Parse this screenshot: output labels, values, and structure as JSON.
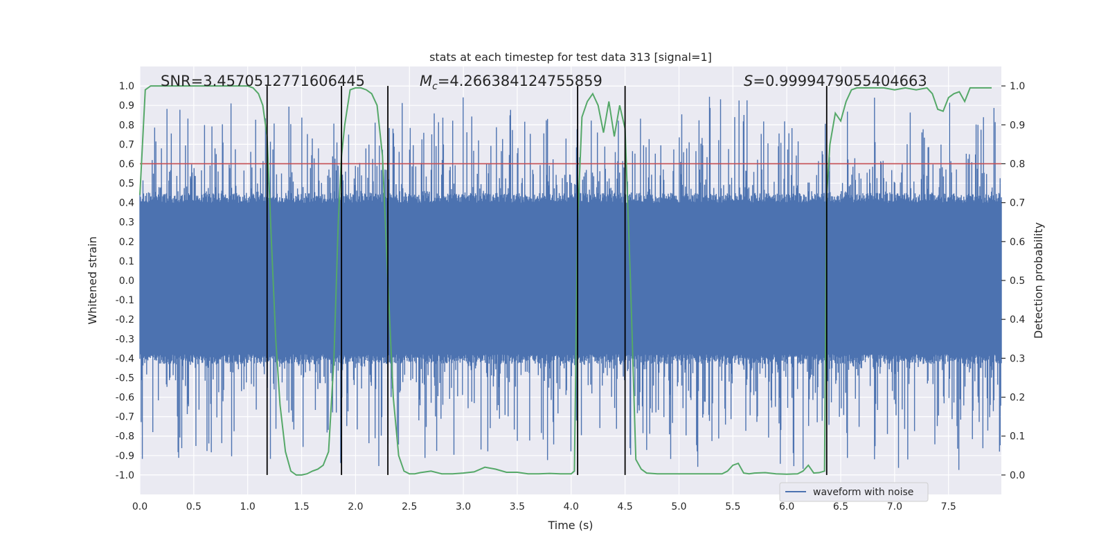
{
  "chart_data": {
    "type": "line",
    "title": "stats at each timestep for test data 313 [signal=1]",
    "xlabel": "Time (s)",
    "ylabel": "Whitened strain",
    "y2label": "Detection probability",
    "xlim": [
      0.0,
      7.99
    ],
    "ylim": [
      -1.1,
      1.1
    ],
    "y2lim": [
      -0.05,
      1.05
    ],
    "xticks": [
      "0.0",
      "0.5",
      "1.0",
      "1.5",
      "2.0",
      "2.5",
      "3.0",
      "3.5",
      "4.0",
      "4.5",
      "5.0",
      "5.5",
      "6.0",
      "6.5",
      "7.0",
      "7.5"
    ],
    "yticks": [
      "1.0",
      "0.9",
      "0.8",
      "0.7",
      "0.6",
      "0.5",
      "0.4",
      "0.3",
      "0.2",
      "0.1",
      "0.0",
      "-0.1",
      "-0.2",
      "-0.3",
      "-0.4",
      "-0.5",
      "-0.6",
      "-0.7",
      "-0.8",
      "-0.9",
      "-1.0"
    ],
    "y2ticks": [
      "1.0",
      "0.9",
      "0.8",
      "0.7",
      "0.6",
      "0.5",
      "0.4",
      "0.3",
      "0.2",
      "0.1",
      "0.0"
    ],
    "grid": true,
    "legend_position": "bottom-right",
    "annotations": {
      "snr_prefix": "SNR=",
      "snr_value": "3.4570512771606445",
      "mc_symbol": "M",
      "mc_sub": "c",
      "mc_value": "=4.266384124755859",
      "s_symbol": "S",
      "s_value": "=0.9999479055404663"
    },
    "threshold": {
      "y2": 0.8,
      "color": "#c44e52"
    },
    "vertical_lines_x": [
      1.18,
      1.87,
      2.3,
      4.06,
      4.5,
      6.37
    ],
    "series": [
      {
        "name": "waveform with noise",
        "color": "#4c72b0",
        "band_typical": [
          -0.38,
          0.4
        ],
        "spike_range": [
          -1.0,
          1.0
        ]
      },
      {
        "color": "#55a868",
        "axis": "y2",
        "x": [
          0.0,
          0.05,
          0.1,
          0.2,
          0.3,
          0.5,
          0.7,
          0.9,
          1.0,
          1.05,
          1.1,
          1.14,
          1.18,
          1.22,
          1.26,
          1.3,
          1.35,
          1.4,
          1.45,
          1.5,
          1.55,
          1.6,
          1.65,
          1.7,
          1.75,
          1.8,
          1.84,
          1.87,
          1.9,
          1.95,
          2.0,
          2.05,
          2.1,
          2.15,
          2.2,
          2.25,
          2.3,
          2.35,
          2.4,
          2.45,
          2.5,
          2.55,
          2.6,
          2.7,
          2.8,
          2.9,
          3.0,
          3.1,
          3.2,
          3.3,
          3.4,
          3.5,
          3.6,
          3.7,
          3.8,
          3.9,
          4.0,
          4.03,
          4.06,
          4.1,
          4.15,
          4.2,
          4.25,
          4.3,
          4.35,
          4.4,
          4.45,
          4.5,
          4.55,
          4.6,
          4.65,
          4.7,
          4.8,
          4.9,
          5.0,
          5.2,
          5.4,
          5.45,
          5.5,
          5.55,
          5.6,
          5.65,
          5.7,
          5.8,
          5.9,
          6.0,
          6.1,
          6.15,
          6.2,
          6.25,
          6.3,
          6.35,
          6.37,
          6.4,
          6.45,
          6.5,
          6.55,
          6.6,
          6.65,
          6.7,
          6.8,
          6.9,
          7.0,
          7.1,
          7.2,
          7.3,
          7.35,
          7.4,
          7.45,
          7.5,
          7.55,
          7.6,
          7.65,
          7.7,
          7.75,
          7.8,
          7.9
        ],
        "y": [
          0.72,
          0.99,
          1.0,
          1.0,
          1.0,
          1.0,
          1.0,
          1.0,
          1.0,
          0.995,
          0.98,
          0.95,
          0.87,
          0.6,
          0.35,
          0.18,
          0.06,
          0.01,
          0.0,
          0.0,
          0.003,
          0.01,
          0.015,
          0.025,
          0.06,
          0.3,
          0.65,
          0.82,
          0.9,
          0.99,
          0.995,
          0.995,
          0.99,
          0.98,
          0.95,
          0.82,
          0.5,
          0.2,
          0.05,
          0.01,
          0.003,
          0.003,
          0.006,
          0.01,
          0.003,
          0.003,
          0.005,
          0.008,
          0.02,
          0.015,
          0.007,
          0.007,
          0.003,
          0.003,
          0.004,
          0.003,
          0.003,
          0.01,
          0.65,
          0.92,
          0.96,
          0.98,
          0.95,
          0.88,
          0.96,
          0.87,
          0.95,
          0.89,
          0.5,
          0.04,
          0.015,
          0.005,
          0.003,
          0.003,
          0.003,
          0.003,
          0.003,
          0.01,
          0.025,
          0.03,
          0.005,
          0.003,
          0.005,
          0.006,
          0.003,
          0.002,
          0.003,
          0.01,
          0.025,
          0.005,
          0.006,
          0.01,
          0.72,
          0.85,
          0.93,
          0.91,
          0.96,
          0.99,
          0.995,
          0.995,
          0.995,
          0.995,
          0.99,
          0.995,
          0.99,
          0.995,
          0.98,
          0.94,
          0.935,
          0.97,
          0.98,
          0.985,
          0.96,
          0.995,
          0.995,
          0.995,
          0.995
        ]
      }
    ]
  }
}
